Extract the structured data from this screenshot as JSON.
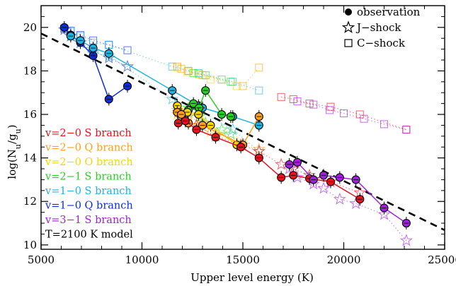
{
  "chart_data": {
    "type": "scatter",
    "xlabel": "Upper level energy (K)",
    "ylabel": "log(N_u/g_u)",
    "xlim": [
      5000,
      25000
    ],
    "ylim": [
      9.8,
      21
    ],
    "x_ticks": [
      "5000",
      "10000",
      "15000",
      "20000",
      "25000"
    ],
    "y_ticks": [
      "10",
      "12",
      "14",
      "16",
      "18",
      "20"
    ],
    "legend": {
      "placement": "top-right",
      "entries": [
        {
          "marker": "circle",
          "label": "observation"
        },
        {
          "marker": "star",
          "label": "J−shock"
        },
        {
          "marker": "square",
          "label": "C−shock"
        }
      ]
    },
    "series_labels": [
      {
        "text": "v=2−0 S branch",
        "color": "#e8111d"
      },
      {
        "text": "v=2−0 Q branch",
        "color": "#ff9f1c"
      },
      {
        "text": "v=2−0 O branch",
        "color": "#f5d800"
      },
      {
        "text": "v=2−1 S branch",
        "color": "#22d420"
      },
      {
        "text": "v=1−0 S branch",
        "color": "#1fb4e5"
      },
      {
        "text": "v=1−0 Q branch",
        "color": "#0b2fd6"
      },
      {
        "text": "v=3−1 S branch",
        "color": "#a020e0"
      },
      {
        "text": "T=2100 K model",
        "color": "#000000"
      }
    ],
    "model_line": {
      "x": [
        5000,
        25000
      ],
      "y": [
        19.72,
        10.68
      ]
    },
    "series": [
      {
        "branch": "v=1−0 Q",
        "color": "#0b2fd6",
        "obs": [
          [
            6150,
            20.0
          ],
          [
            6470,
            19.65
          ],
          [
            6950,
            19.3
          ],
          [
            7580,
            18.7
          ],
          [
            8360,
            16.7
          ],
          [
            9280,
            17.3
          ]
        ],
        "jshock": [
          [
            6150,
            19.9
          ],
          [
            6470,
            19.6
          ],
          [
            6950,
            19.3
          ],
          [
            7580,
            18.9
          ],
          [
            8360,
            18.6
          ],
          [
            9280,
            18.2
          ]
        ],
        "cshock": [
          [
            6150,
            19.95
          ],
          [
            6470,
            19.85
          ],
          [
            6950,
            19.65
          ],
          [
            7580,
            19.4
          ],
          [
            8360,
            19.2
          ],
          [
            9280,
            18.95
          ]
        ]
      },
      {
        "branch": "v=1−0 S",
        "color": "#1fb4e5",
        "obs": [
          [
            6470,
            19.6
          ],
          [
            6950,
            19.4
          ],
          [
            7580,
            19.05
          ],
          [
            8360,
            18.8
          ],
          [
            11500,
            17.1
          ],
          [
            12800,
            16.4
          ],
          [
            13000,
            16.3
          ],
          [
            14500,
            15.9
          ],
          [
            15800,
            15.5
          ]
        ],
        "jshock": [
          [
            6470,
            19.6
          ],
          [
            6950,
            19.3
          ],
          [
            7580,
            18.8
          ],
          [
            8360,
            18.7
          ],
          [
            11500,
            16.7
          ],
          [
            12800,
            16.2
          ],
          [
            14500,
            15.3
          ],
          [
            15800,
            14.3
          ]
        ],
        "cshock": [
          [
            6470,
            19.8
          ],
          [
            6950,
            19.6
          ],
          [
            7580,
            19.3
          ],
          [
            8360,
            19.2
          ],
          [
            11500,
            18.2
          ],
          [
            12800,
            17.9
          ],
          [
            14500,
            17.5
          ],
          [
            15800,
            17.1
          ]
        ]
      },
      {
        "branch": "v=2−1 S",
        "color": "#22d420",
        "obs": [
          [
            12300,
            16.2
          ],
          [
            12550,
            16.5
          ],
          [
            12830,
            16.3
          ],
          [
            13150,
            17.1
          ],
          [
            13950,
            16.0
          ],
          [
            14400,
            15.9
          ]
        ],
        "jshock": [
          [
            12300,
            16.3
          ],
          [
            12550,
            16.1
          ],
          [
            12830,
            15.9
          ],
          [
            13150,
            15.6
          ],
          [
            13950,
            15.3
          ],
          [
            14400,
            15.1
          ]
        ],
        "cshock": [
          [
            12300,
            18.0
          ],
          [
            12550,
            17.9
          ],
          [
            12830,
            17.85
          ],
          [
            13150,
            17.8
          ],
          [
            13950,
            17.6
          ],
          [
            14400,
            17.5
          ]
        ]
      },
      {
        "branch": "v=2−0 O",
        "color": "#f5d800",
        "obs": [
          [
            11750,
            16.4
          ],
          [
            12250,
            16.1
          ],
          [
            12800,
            16.0
          ],
          [
            13400,
            15.5
          ],
          [
            14700,
            14.6
          ]
        ],
        "jshock": [
          [
            11750,
            16.0
          ],
          [
            12250,
            15.8
          ],
          [
            12800,
            15.5
          ],
          [
            13400,
            15.2
          ],
          [
            14700,
            14.7
          ]
        ],
        "cshock": [
          [
            11750,
            18.15
          ],
          [
            12250,
            17.95
          ],
          [
            12800,
            17.85
          ],
          [
            13400,
            17.6
          ],
          [
            14700,
            17.3
          ]
        ]
      },
      {
        "branch": "v=2−0 Q",
        "color": "#ff9f1c",
        "obs": [
          [
            11750,
            16.1
          ],
          [
            11950,
            16.0
          ],
          [
            12300,
            15.6
          ],
          [
            13000,
            15.5
          ],
          [
            15000,
            14.6
          ],
          [
            15800,
            15.9
          ]
        ],
        "jshock": [
          [
            11750,
            16.2
          ],
          [
            11950,
            16.1
          ],
          [
            12300,
            15.9
          ],
          [
            13000,
            15.6
          ],
          [
            15000,
            14.6
          ],
          [
            15800,
            14.4
          ]
        ],
        "cshock": [
          [
            11750,
            18.2
          ],
          [
            11950,
            18.1
          ],
          [
            12300,
            18.0
          ],
          [
            13000,
            17.8
          ],
          [
            15000,
            17.3
          ],
          [
            15800,
            18.15
          ]
        ]
      },
      {
        "branch": "v=2−0 S",
        "color": "#e8111d",
        "obs": [
          [
            11800,
            15.6
          ],
          [
            12150,
            15.7
          ],
          [
            12700,
            15.3
          ],
          [
            13650,
            14.95
          ],
          [
            14900,
            14.5
          ],
          [
            15800,
            14.0
          ],
          [
            16900,
            13.1
          ],
          [
            17500,
            13.2
          ],
          [
            18300,
            13.05
          ],
          [
            19350,
            12.9
          ],
          [
            20800,
            12.1
          ]
        ],
        "jshock": [
          [
            11800,
            16.1
          ],
          [
            12150,
            15.9
          ],
          [
            12700,
            15.5
          ],
          [
            13650,
            15.0
          ],
          [
            14900,
            14.6
          ],
          [
            15800,
            14.3
          ],
          [
            16900,
            13.7
          ],
          [
            17500,
            13.5
          ],
          [
            18300,
            13.2
          ],
          [
            19350,
            12.9
          ],
          [
            20800,
            12.4
          ]
        ],
        "cshock": [
          [
            16900,
            16.8
          ],
          [
            17500,
            16.7
          ],
          [
            18300,
            16.5
          ],
          [
            19350,
            16.35
          ],
          [
            20800,
            16.0
          ],
          [
            23100,
            15.3
          ]
        ]
      },
      {
        "branch": "v=3−1 S",
        "color": "#a020e0",
        "obs": [
          [
            17300,
            13.7
          ],
          [
            17700,
            13.8
          ],
          [
            18500,
            13.0
          ],
          [
            19000,
            13.2
          ],
          [
            19800,
            13.1
          ],
          [
            20600,
            13.0
          ],
          [
            22000,
            11.7
          ],
          [
            23100,
            11.0
          ]
        ],
        "jshock": [
          [
            17300,
            13.5
          ],
          [
            17700,
            13.1
          ],
          [
            18500,
            12.8
          ],
          [
            19000,
            12.6
          ],
          [
            19800,
            12.1
          ],
          [
            20600,
            11.9
          ],
          [
            22000,
            11.4
          ],
          [
            23100,
            10.2
          ]
        ],
        "cshock": [
          [
            17700,
            16.6
          ],
          [
            18500,
            16.45
          ],
          [
            19300,
            16.2
          ],
          [
            20000,
            16.05
          ],
          [
            21000,
            15.8
          ],
          [
            22000,
            15.55
          ],
          [
            23100,
            15.3
          ]
        ]
      }
    ]
  }
}
